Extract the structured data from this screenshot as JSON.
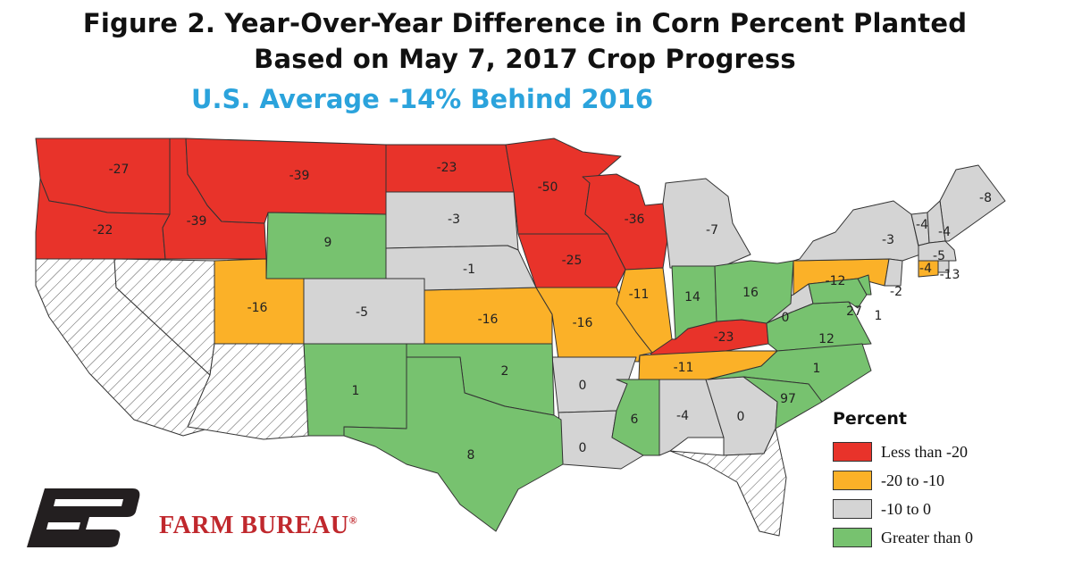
{
  "title": {
    "line1": "Figure 2. Year-Over-Year Difference in Corn Percent Planted",
    "line2": "Based on May 7, 2017 Crop Progress"
  },
  "subtitle": "U.S. Average -14% Behind 2016",
  "colors": {
    "subtitle": "#2ba3dc",
    "less_than_-20": "#e8332a",
    "-20_to_-10": "#fbb128",
    "-10_to_0": "#d4d4d4",
    "greater_than_0": "#77c26f",
    "no_data_hatch": "#ffffff",
    "logo": "#231f20",
    "brand": "#c0282d"
  },
  "legend": {
    "title": "Percent",
    "items": [
      {
        "label": "Less than -20",
        "category": "less_than_-20"
      },
      {
        "label": "-20 to -10",
        "category": "-20_to_-10"
      },
      {
        "label": "-10 to 0",
        "category": "-10_to_0"
      },
      {
        "label": "Greater than 0",
        "category": "greater_than_0"
      }
    ]
  },
  "states": [
    {
      "state": "WA",
      "value": "-27",
      "category": "less_than_-20"
    },
    {
      "state": "OR",
      "value": "-22",
      "category": "less_than_-20"
    },
    {
      "state": "ID",
      "value": "-39",
      "category": "less_than_-20"
    },
    {
      "state": "MT",
      "value": "-39",
      "category": "less_than_-20"
    },
    {
      "state": "ND",
      "value": "-23",
      "category": "less_than_-20"
    },
    {
      "state": "MN",
      "value": "-50",
      "category": "less_than_-20"
    },
    {
      "state": "WI",
      "value": "-36",
      "category": "less_than_-20"
    },
    {
      "state": "IA",
      "value": "-25",
      "category": "less_than_-20"
    },
    {
      "state": "KY",
      "value": "-23",
      "category": "less_than_-20"
    },
    {
      "state": "UT",
      "value": "-16",
      "category": "-20_to_-10"
    },
    {
      "state": "KS",
      "value": "-16",
      "category": "-20_to_-10"
    },
    {
      "state": "MO",
      "value": "-16",
      "category": "-20_to_-10"
    },
    {
      "state": "IL",
      "value": "-11",
      "category": "-20_to_-10"
    },
    {
      "state": "TN",
      "value": "-11",
      "category": "-20_to_-10"
    },
    {
      "state": "PA",
      "value": "-12",
      "category": "-20_to_-10"
    },
    {
      "state": "CT",
      "value": "-13",
      "category": "-20_to_-10"
    },
    {
      "state": "SD",
      "value": "-3",
      "category": "-10_to_0"
    },
    {
      "state": "NE",
      "value": "-1",
      "category": "-10_to_0"
    },
    {
      "state": "CO",
      "value": "-5",
      "category": "-10_to_0"
    },
    {
      "state": "MI",
      "value": "-7",
      "category": "-10_to_0"
    },
    {
      "state": "NY",
      "value": "-3",
      "category": "-10_to_0"
    },
    {
      "state": "ME",
      "value": "-8",
      "category": "-10_to_0"
    },
    {
      "state": "VT",
      "value": "-4",
      "category": "-10_to_0"
    },
    {
      "state": "NH",
      "value": "-4",
      "category": "-10_to_0"
    },
    {
      "state": "MA",
      "value": "-5",
      "category": "-10_to_0"
    },
    {
      "state": "RI",
      "value": "-4",
      "category": "-10_to_0"
    },
    {
      "state": "WV",
      "value": "0",
      "category": "-10_to_0"
    },
    {
      "state": "AR",
      "value": "0",
      "category": "-10_to_0"
    },
    {
      "state": "LA",
      "value": "0",
      "category": "-10_to_0"
    },
    {
      "state": "AL",
      "value": "-4",
      "category": "-10_to_0"
    },
    {
      "state": "GA",
      "value": "0",
      "category": "-10_to_0"
    },
    {
      "state": "NJ",
      "value": "-2",
      "category": "-10_to_0"
    },
    {
      "state": "WY",
      "value": "9",
      "category": "greater_than_0"
    },
    {
      "state": "NM",
      "value": "1",
      "category": "greater_than_0"
    },
    {
      "state": "OK",
      "value": "2",
      "category": "greater_than_0"
    },
    {
      "state": "TX",
      "value": "8",
      "category": "greater_than_0"
    },
    {
      "state": "IN",
      "value": "14",
      "category": "greater_than_0"
    },
    {
      "state": "OH",
      "value": "16",
      "category": "greater_than_0"
    },
    {
      "state": "MS",
      "value": "6",
      "category": "greater_than_0"
    },
    {
      "state": "VA",
      "value": "12",
      "category": "greater_than_0"
    },
    {
      "state": "NC",
      "value": "1",
      "category": "greater_than_0"
    },
    {
      "state": "SC",
      "value": "97",
      "category": "greater_than_0"
    },
    {
      "state": "MD",
      "value": "27",
      "category": "greater_than_0"
    },
    {
      "state": "DE",
      "value": "1",
      "category": "greater_than_0"
    },
    {
      "state": "CA",
      "value": "",
      "category": "no_data"
    },
    {
      "state": "NV",
      "value": "",
      "category": "no_data"
    },
    {
      "state": "AZ",
      "value": "",
      "category": "no_data"
    },
    {
      "state": "FL",
      "value": "",
      "category": "no_data"
    }
  ],
  "brand": {
    "name": "FARM BUREAU",
    "mark": "®"
  }
}
